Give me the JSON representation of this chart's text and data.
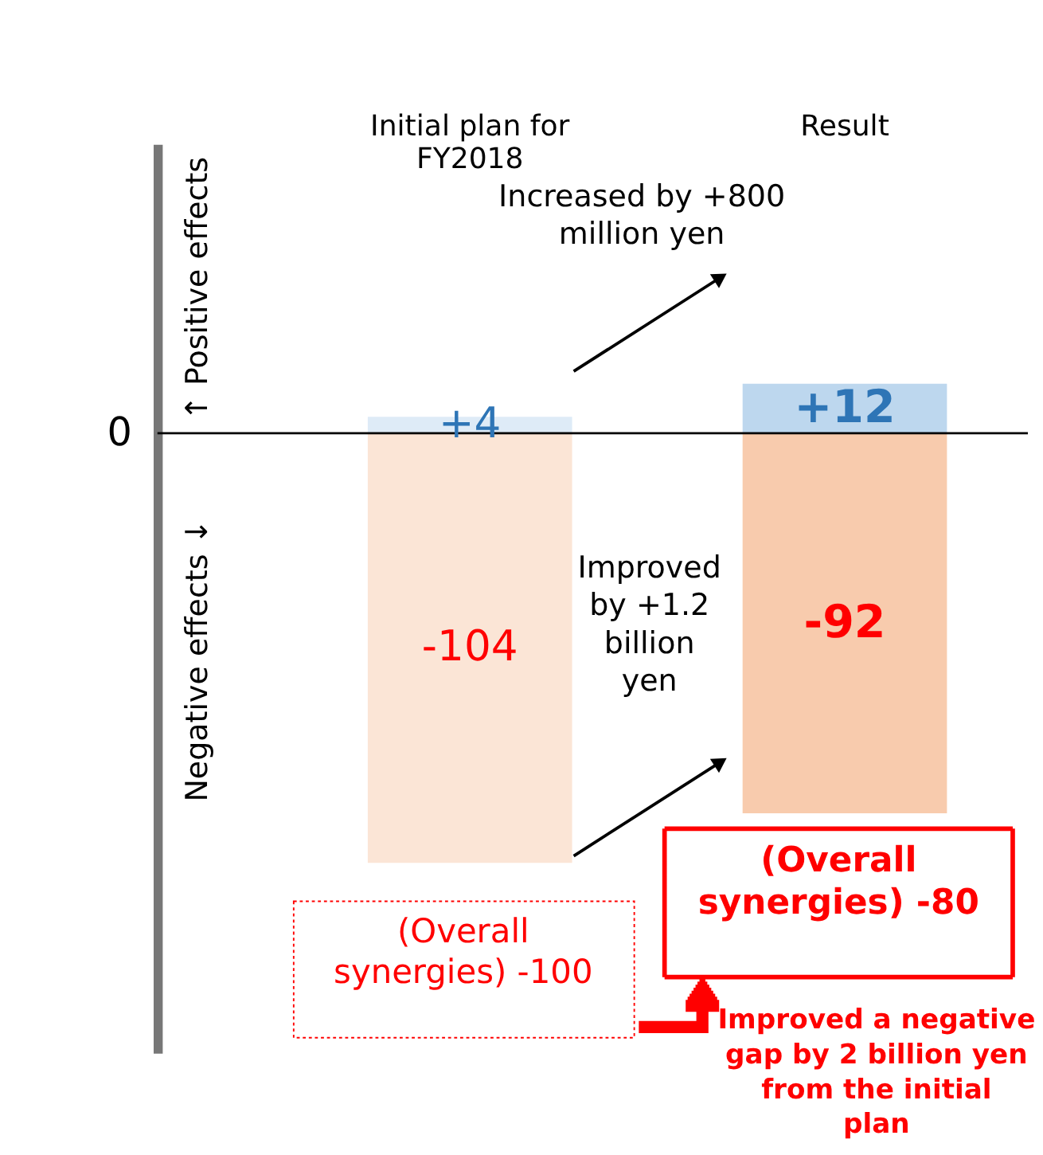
{
  "chart_data": {
    "type": "bar",
    "stacked": true,
    "categories": [
      "Initial plan for FY2018",
      "Result"
    ],
    "series": [
      {
        "colors": [
          "#deebf7",
          "#bdd7ee"
        ],
        "values": [
          4,
          12
        ],
        "value_labels": [
          "+4",
          "+12"
        ]
      },
      {
        "colors": [
          "#fbe5d6",
          "#f8cbad"
        ],
        "values": [
          -104,
          -92
        ],
        "value_labels": [
          "-104",
          "-92"
        ]
      }
    ],
    "ylim": [
      -150,
      70
    ],
    "annotations": [
      "↑ Positive effects",
      "Negative effects ↓",
      "Increased by +800 million yen",
      "Improved by +1.2 billion yen",
      "(Overall synergies) -100",
      "(Overall synergies) -80",
      "Improved a negative gap by 2 billion yen from the initial plan",
      "0"
    ]
  }
}
